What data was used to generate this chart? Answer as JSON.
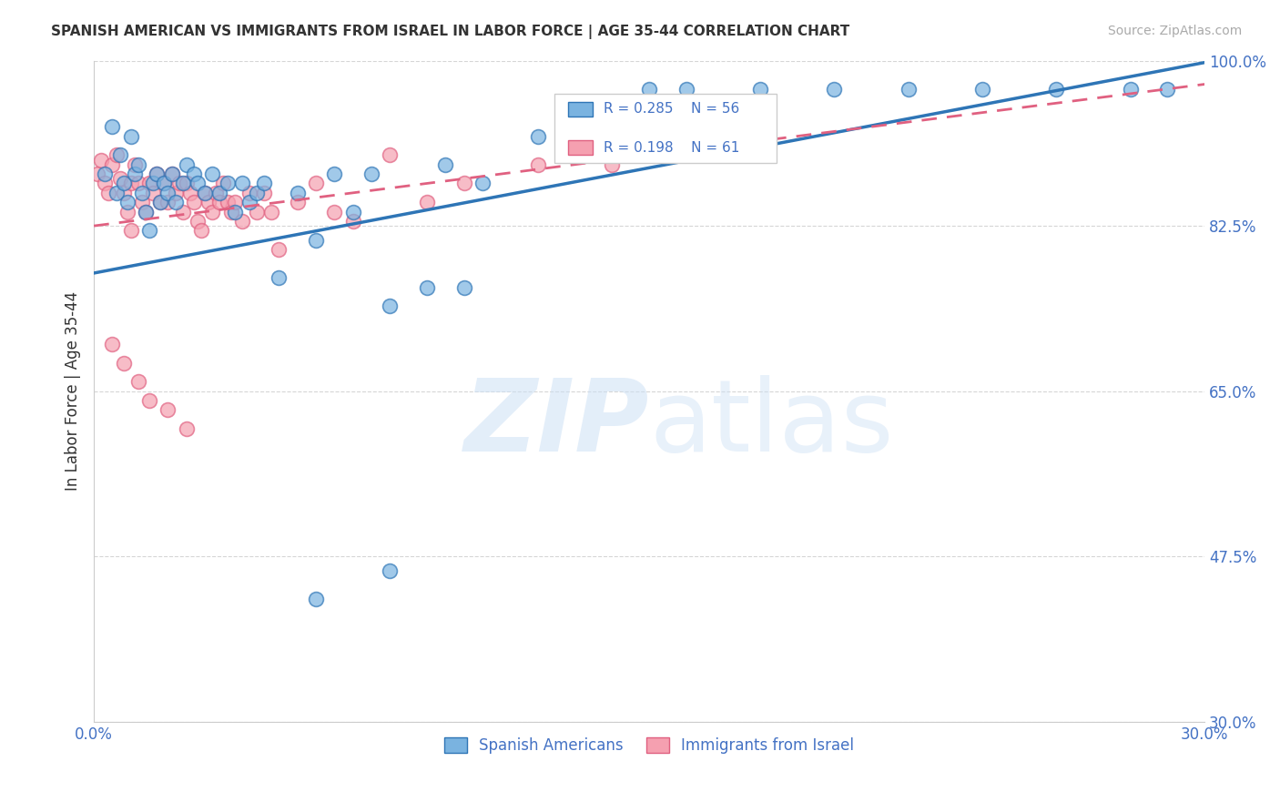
{
  "title": "SPANISH AMERICAN VS IMMIGRANTS FROM ISRAEL IN LABOR FORCE | AGE 35-44 CORRELATION CHART",
  "source": "Source: ZipAtlas.com",
  "ylabel": "In Labor Force | Age 35-44",
  "xlim": [
    0.0,
    0.3
  ],
  "ylim": [
    0.3,
    1.0
  ],
  "yticks": [
    0.3,
    0.475,
    0.65,
    0.825,
    1.0
  ],
  "yticklabels": [
    "30.0%",
    "47.5%",
    "65.0%",
    "82.5%",
    "100.0%"
  ],
  "blue_R": 0.285,
  "blue_N": 56,
  "pink_R": 0.198,
  "pink_N": 61,
  "blue_color": "#7ab3e0",
  "pink_color": "#f5a0b0",
  "trend_blue": "#2E75B6",
  "trend_pink": "#e06080",
  "legend_blue_label": "Spanish Americans",
  "legend_pink_label": "Immigrants from Israel",
  "blue_line_x": [
    0.0,
    0.3
  ],
  "blue_line_y": [
    0.775,
    0.998
  ],
  "pink_line_x": [
    0.0,
    0.3
  ],
  "pink_line_y": [
    0.825,
    0.975
  ],
  "blue_x": [
    0.003,
    0.005,
    0.006,
    0.007,
    0.008,
    0.009,
    0.01,
    0.011,
    0.012,
    0.013,
    0.014,
    0.015,
    0.016,
    0.017,
    0.018,
    0.019,
    0.02,
    0.021,
    0.022,
    0.024,
    0.025,
    0.027,
    0.028,
    0.03,
    0.032,
    0.034,
    0.036,
    0.038,
    0.04,
    0.042,
    0.044,
    0.046,
    0.05,
    0.055,
    0.06,
    0.065,
    0.07,
    0.075,
    0.08,
    0.09,
    0.095,
    0.1,
    0.105,
    0.12,
    0.13,
    0.15,
    0.16,
    0.18,
    0.2,
    0.22,
    0.24,
    0.26,
    0.28,
    0.29,
    0.08,
    0.06
  ],
  "blue_y": [
    0.88,
    0.93,
    0.86,
    0.9,
    0.87,
    0.85,
    0.92,
    0.88,
    0.89,
    0.86,
    0.84,
    0.82,
    0.87,
    0.88,
    0.85,
    0.87,
    0.86,
    0.88,
    0.85,
    0.87,
    0.89,
    0.88,
    0.87,
    0.86,
    0.88,
    0.86,
    0.87,
    0.84,
    0.87,
    0.85,
    0.86,
    0.87,
    0.77,
    0.86,
    0.81,
    0.88,
    0.84,
    0.88,
    0.74,
    0.76,
    0.89,
    0.76,
    0.87,
    0.92,
    0.94,
    0.97,
    0.97,
    0.97,
    0.97,
    0.97,
    0.97,
    0.97,
    0.97,
    0.97,
    0.46,
    0.43
  ],
  "pink_x": [
    0.001,
    0.002,
    0.003,
    0.004,
    0.005,
    0.006,
    0.007,
    0.008,
    0.009,
    0.01,
    0.01,
    0.011,
    0.012,
    0.013,
    0.014,
    0.015,
    0.016,
    0.017,
    0.018,
    0.019,
    0.02,
    0.021,
    0.022,
    0.023,
    0.024,
    0.025,
    0.026,
    0.027,
    0.028,
    0.029,
    0.03,
    0.031,
    0.032,
    0.033,
    0.034,
    0.035,
    0.036,
    0.037,
    0.038,
    0.04,
    0.042,
    0.044,
    0.046,
    0.048,
    0.05,
    0.055,
    0.06,
    0.065,
    0.07,
    0.08,
    0.09,
    0.1,
    0.12,
    0.14,
    0.16,
    0.005,
    0.008,
    0.012,
    0.015,
    0.02,
    0.025
  ],
  "pink_y": [
    0.88,
    0.895,
    0.87,
    0.86,
    0.89,
    0.9,
    0.875,
    0.86,
    0.84,
    0.82,
    0.87,
    0.89,
    0.87,
    0.85,
    0.84,
    0.87,
    0.86,
    0.88,
    0.85,
    0.87,
    0.85,
    0.88,
    0.86,
    0.87,
    0.84,
    0.87,
    0.86,
    0.85,
    0.83,
    0.82,
    0.86,
    0.85,
    0.84,
    0.86,
    0.85,
    0.87,
    0.85,
    0.84,
    0.85,
    0.83,
    0.86,
    0.84,
    0.86,
    0.84,
    0.8,
    0.85,
    0.87,
    0.84,
    0.83,
    0.9,
    0.85,
    0.87,
    0.89,
    0.89,
    0.9,
    0.7,
    0.68,
    0.66,
    0.64,
    0.63,
    0.61
  ]
}
